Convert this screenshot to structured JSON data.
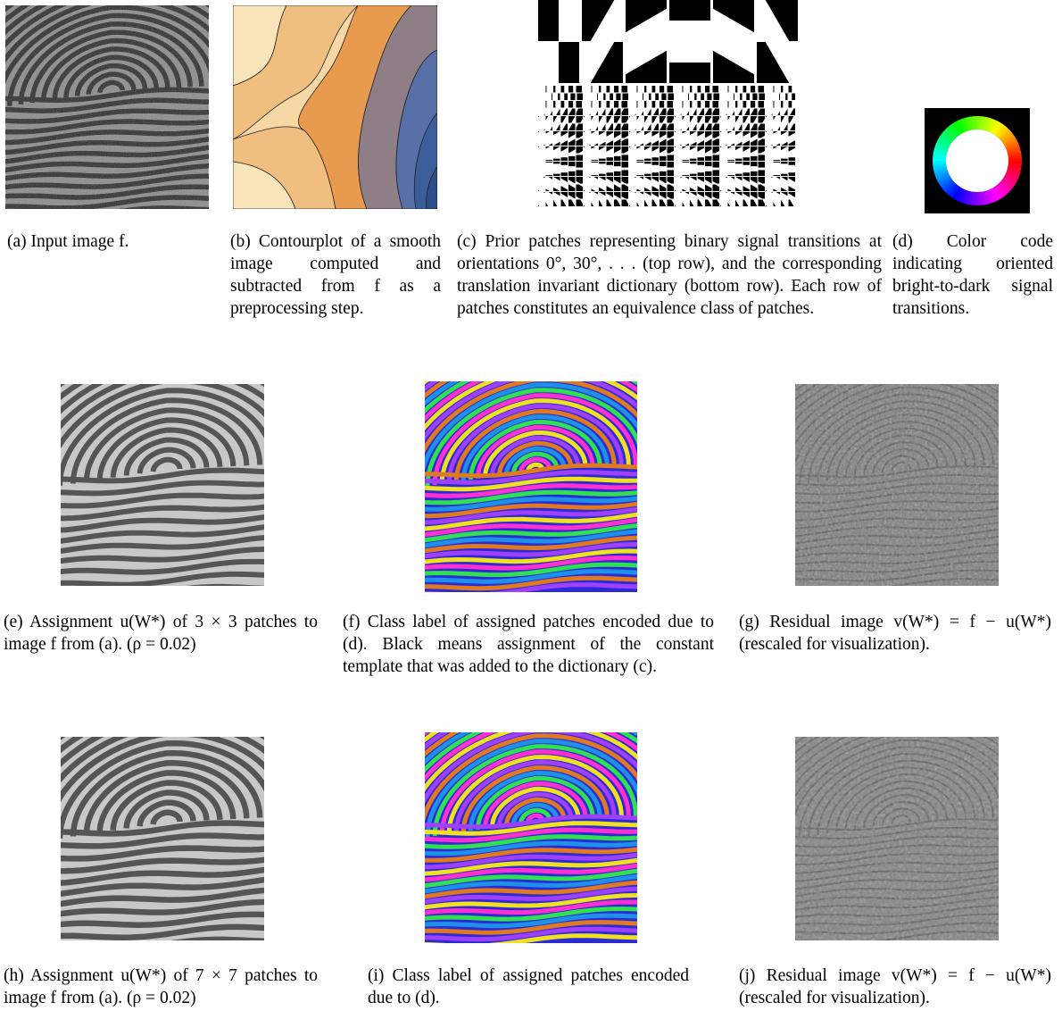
{
  "figure": {
    "row1": {
      "a": {
        "label": "(a)",
        "text": "Input image f."
      },
      "b": {
        "label": "(b)",
        "text": "Contourplot of a smooth image computed and subtracted from f as a preprocessing step."
      },
      "c": {
        "label": "(c)",
        "text": "Prior patches representing binary signal transitions at orientations 0°, 30°, . . . (top row), and the corresponding translation invariant dictionary (bottom row). Each row of patches constitutes an equivalence class of patches."
      },
      "d": {
        "label": "(d)",
        "text": "Color code indicating oriented bright-to-dark signal transitions."
      }
    },
    "row2": {
      "e": {
        "label": "(e)",
        "text": "Assignment u(W*) of 3 × 3 patches to image f from (a). (ρ = 0.02)"
      },
      "f": {
        "label": "(f)",
        "text": "Class label of assigned patches encoded due to (d). Black means assignment of the constant template that was added to the dictionary (c)."
      },
      "g": {
        "label": "(g)",
        "text": "Residual image v(W*) = f − u(W*) (rescaled for visualization)."
      }
    },
    "row3": {
      "h": {
        "label": "(h)",
        "text": "Assignment u(W*) of 7 × 7 patches to image f from (a). (ρ = 0.02)"
      },
      "i": {
        "label": "(i)",
        "text": "Class label of assigned patches encoded due to (d)."
      },
      "j": {
        "label": "(j)",
        "text": "Residual image v(W*) = f − u(W*) (rescaled for visualization)."
      }
    }
  }
}
